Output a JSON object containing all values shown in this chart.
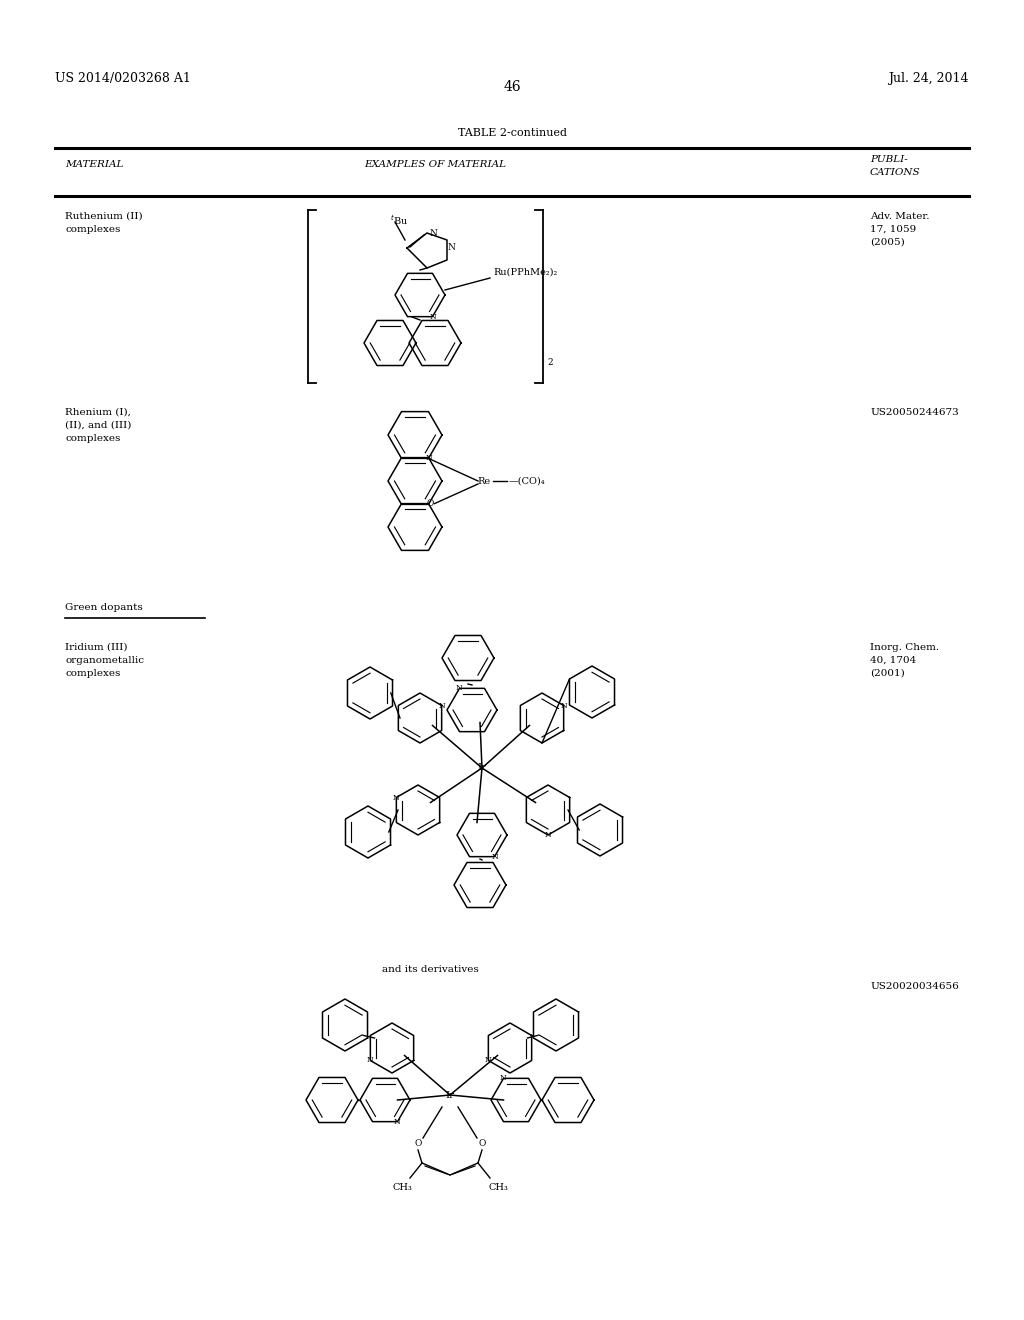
{
  "bg_color": "#ffffff",
  "page_number": "46",
  "patent_left": "US 2014/0203268 A1",
  "patent_right": "Jul. 24, 2014",
  "table_title": "TABLE 2-continued",
  "col1_header": "MATERIAL",
  "col2_header": "EXAMPLES OF MATERIAL",
  "col3_header_line1": "PUBLI-",
  "col3_header_line2": "CATIONS",
  "row1_mat1": "Ruthenium (II)",
  "row1_mat2": "complexes",
  "row1_cit1": "Adv. Mater.",
  "row1_cit2": "17, 1059",
  "row1_cit3": "(2005)",
  "row2_mat1": "Rhenium (I),",
  "row2_mat2": "(II), and (III)",
  "row2_mat3": "complexes",
  "row2_cit": "US20050244673",
  "section_header": "Green dopants",
  "row3_mat1": "Iridium (III)",
  "row3_mat2": "organometallic",
  "row3_mat3": "complexes",
  "row3_cit1": "Inorg. Chem.",
  "row3_cit2": "40, 1704",
  "row3_cit3": "(2001)",
  "row4_text": "and its derivatives",
  "row4_cit": "US20020034656"
}
